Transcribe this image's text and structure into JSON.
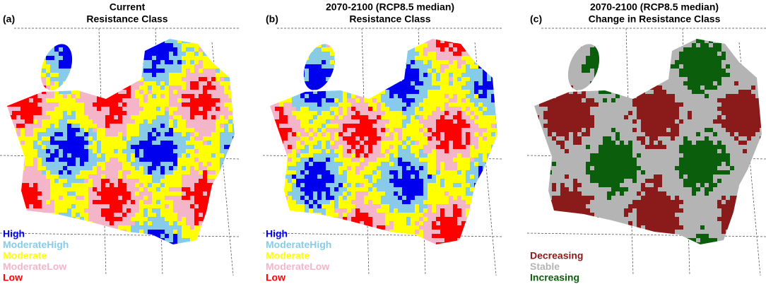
{
  "panels": [
    {
      "label": "(a)",
      "title_lines": [
        "Current",
        "Resistance Class"
      ],
      "legend": [
        {
          "text": "High",
          "color": "#0000ee"
        },
        {
          "text": "ModerateHigh",
          "color": "#87cbe8"
        },
        {
          "text": "Moderate",
          "color": "#ffff00"
        },
        {
          "text": "ModerateLow",
          "color": "#f5b5c8"
        },
        {
          "text": "Low",
          "color": "#ff0000"
        }
      ]
    },
    {
      "label": "(b)",
      "title_lines": [
        "2070-2100 (RCP8.5 median)",
        "Resistance Class"
      ],
      "legend": [
        {
          "text": "High",
          "color": "#0000ee"
        },
        {
          "text": "ModerateHigh",
          "color": "#87cbe8"
        },
        {
          "text": "Moderate",
          "color": "#ffff00"
        },
        {
          "text": "ModerateLow",
          "color": "#f5b5c8"
        },
        {
          "text": "Low",
          "color": "#ff0000"
        }
      ]
    },
    {
      "label": "(c)",
      "title_lines": [
        "2070-2100 (RCP8.5 median)",
        "Change in Resistance Class"
      ],
      "legend": [
        {
          "text": "Decreasing",
          "color": "#8b1a1a"
        },
        {
          "text": "Stable",
          "color": "#b4b4b4"
        },
        {
          "text": "Increasing",
          "color": "#0b5e0b"
        }
      ]
    }
  ]
}
